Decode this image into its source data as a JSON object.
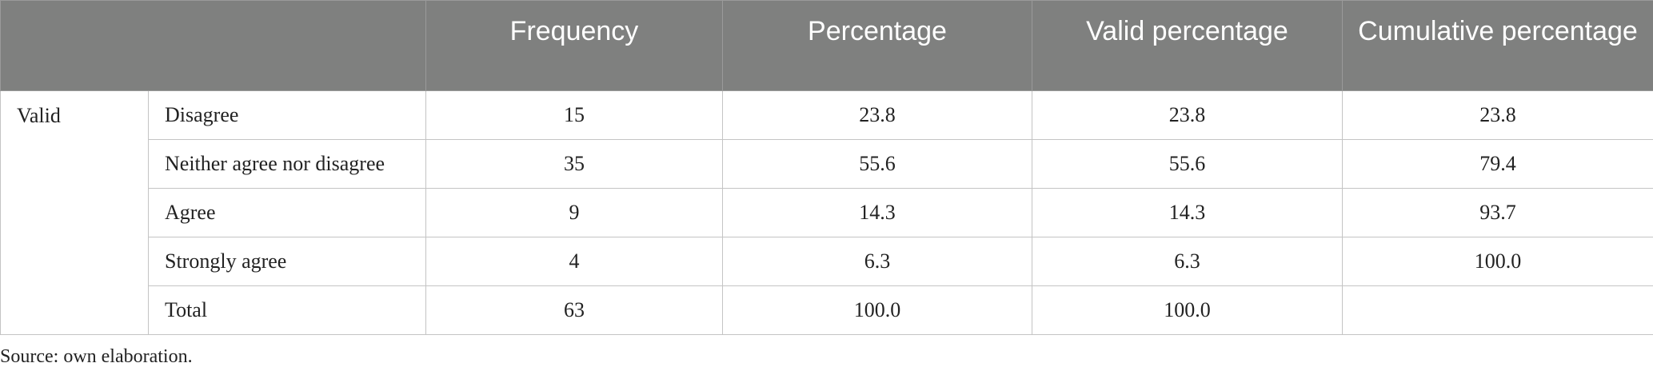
{
  "table": {
    "header": [
      "Frequency",
      "Percentage",
      "Valid percentage",
      "Cumulative percentage"
    ],
    "group": "Valid",
    "rows": [
      {
        "label": "Disagree",
        "cells": [
          "15",
          "23.8",
          "23.8",
          "23.8"
        ]
      },
      {
        "label": "Neither agree nor disagree",
        "cells": [
          "35",
          "55.6",
          "55.6",
          "79.4"
        ]
      },
      {
        "label": "Agree",
        "cells": [
          "9",
          "14.3",
          "14.3",
          "93.7"
        ]
      },
      {
        "label": "Strongly agree",
        "cells": [
          "4",
          "6.3",
          "6.3",
          "100.0"
        ]
      },
      {
        "label": "Total",
        "cells": [
          "63",
          "100.0",
          "100.0"
        ]
      }
    ]
  },
  "note": "Source: own elaboration."
}
